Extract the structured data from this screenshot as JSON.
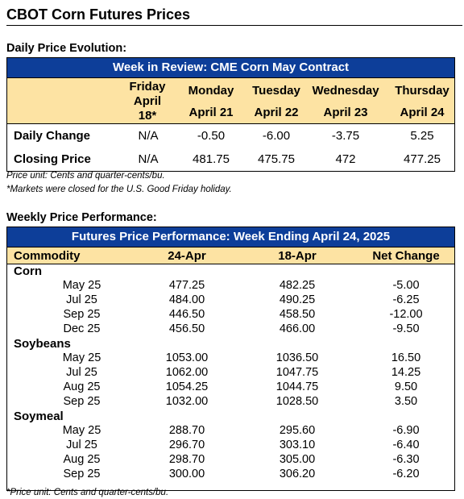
{
  "page_title": "CBOT Corn Futures Prices",
  "daily": {
    "section_title": "Daily Price Evolution:",
    "table_title": "Week in Review: CME Corn May Contract",
    "days": [
      {
        "day": "Friday",
        "date": "April 18*"
      },
      {
        "day": "Monday",
        "date": "April 21"
      },
      {
        "day": "Tuesday",
        "date": "April 22"
      },
      {
        "day": "Wednesday",
        "date": "April 23"
      },
      {
        "day": "Thursday",
        "date": "April 24"
      }
    ],
    "rows": [
      {
        "label": "Daily Change",
        "values": [
          "N/A",
          "-0.50",
          "-6.00",
          "-3.75",
          "5.25"
        ]
      },
      {
        "label": "Closing Price",
        "values": [
          "N/A",
          "481.75",
          "475.75",
          "472",
          "477.25"
        ]
      }
    ],
    "note1": "Price unit: Cents and quarter-cents/bu.",
    "note2": "*Markets were closed for the U.S. Good Friday holiday."
  },
  "weekly": {
    "section_title": "Weekly Price Performance:",
    "table_title": "Futures Price Performance: Week Ending April 24, 2025",
    "headers": [
      "Commodity",
      "24-Apr",
      "18-Apr",
      "Net Change"
    ],
    "groups": [
      {
        "name": "Corn",
        "rows": [
          [
            "May 25",
            "477.25",
            "482.25",
            "-5.00"
          ],
          [
            "Jul 25",
            "484.00",
            "490.25",
            "-6.25"
          ],
          [
            "Sep 25",
            "446.50",
            "458.50",
            "-12.00"
          ],
          [
            "Dec 25",
            "456.50",
            "466.00",
            "-9.50"
          ]
        ]
      },
      {
        "name": "Soybeans",
        "rows": [
          [
            "May 25",
            "1053.00",
            "1036.50",
            "16.50"
          ],
          [
            "Jul 25",
            "1062.00",
            "1047.75",
            "14.25"
          ],
          [
            "Aug 25",
            "1054.25",
            "1044.75",
            "9.50"
          ],
          [
            "Sep 25",
            "1032.00",
            "1028.50",
            "3.50"
          ]
        ]
      },
      {
        "name": "Soymeal",
        "rows": [
          [
            "May 25",
            "288.70",
            "295.60",
            "-6.90"
          ],
          [
            "Jul 25",
            "296.70",
            "303.10",
            "-6.40"
          ],
          [
            "Aug 25",
            "298.70",
            "305.00",
            "-6.30"
          ],
          [
            "Sep 25",
            "300.00",
            "306.20",
            "-6.20"
          ]
        ]
      }
    ],
    "note": "*Price unit: Cents and quarter-cents/bu."
  },
  "colors": {
    "header_blue": "#0d3e99",
    "band_gold": "#fde3a3"
  }
}
